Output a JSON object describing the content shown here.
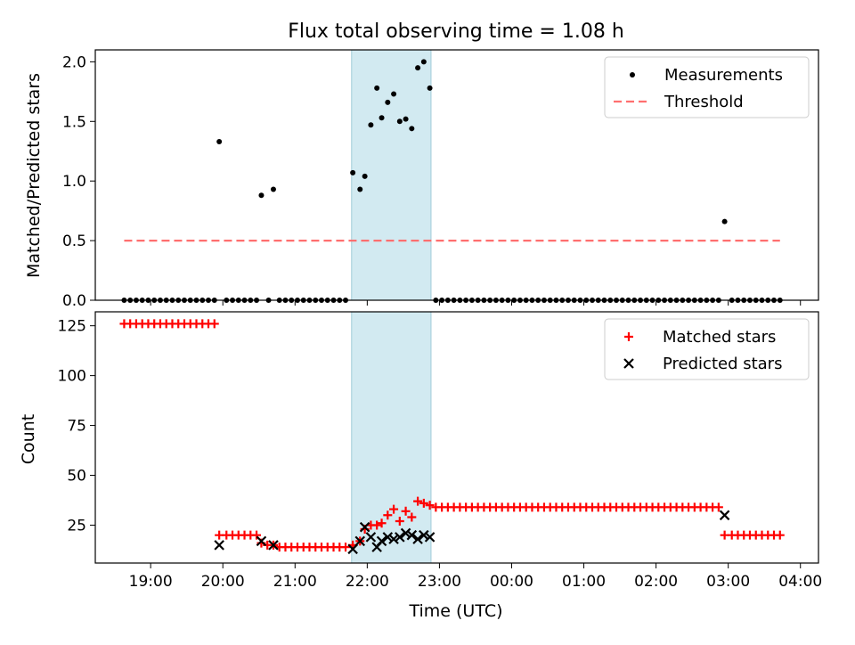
{
  "title": "Flux total observing time = 1.08 h",
  "xlabel": "Time (UTC)",
  "x_ticks": [
    "19:00",
    "20:00",
    "21:00",
    "22:00",
    "23:00",
    "00:00",
    "01:00",
    "02:00",
    "03:00",
    "04:00"
  ],
  "colors": {
    "measurements": "#000000",
    "threshold": "#ff6f6f",
    "matched": "#ff0000",
    "predicted": "#000000",
    "span": "#add8e6"
  },
  "chart_data": [
    {
      "type": "scatter",
      "ylabel": "Matched/Predicted stars",
      "ylim": [
        0,
        2.1
      ],
      "y_ticks": [
        "0.0",
        "0.5",
        "1.0",
        "1.5",
        "2.0"
      ],
      "legend": {
        "placement": "top-right",
        "entries": [
          "Measurements",
          "Threshold"
        ]
      },
      "highlight_span": {
        "start": "21:47",
        "end": "22:53"
      },
      "threshold": {
        "value": 0.5,
        "start": "18:38",
        "end": "03:43"
      },
      "series": [
        {
          "name": "Measurements",
          "points": [
            [
              "18:38",
              0
            ],
            [
              "18:43",
              0
            ],
            [
              "18:48",
              0
            ],
            [
              "18:53",
              0
            ],
            [
              "18:58",
              0
            ],
            [
              "19:03",
              0
            ],
            [
              "19:08",
              0
            ],
            [
              "19:13",
              0
            ],
            [
              "19:18",
              0
            ],
            [
              "19:23",
              0
            ],
            [
              "19:28",
              0
            ],
            [
              "19:33",
              0
            ],
            [
              "19:38",
              0
            ],
            [
              "19:43",
              0
            ],
            [
              "19:48",
              0
            ],
            [
              "19:53",
              0
            ],
            [
              "19:57",
              1.33
            ],
            [
              "20:03",
              0
            ],
            [
              "20:08",
              0
            ],
            [
              "20:13",
              0
            ],
            [
              "20:18",
              0
            ],
            [
              "20:23",
              0
            ],
            [
              "20:28",
              0
            ],
            [
              "20:32",
              0.88
            ],
            [
              "20:42",
              0.93
            ],
            [
              "20:38",
              0
            ],
            [
              "20:47",
              0
            ],
            [
              "20:52",
              0
            ],
            [
              "20:57",
              0
            ],
            [
              "21:02",
              0
            ],
            [
              "21:07",
              0
            ],
            [
              "21:12",
              0
            ],
            [
              "21:17",
              0
            ],
            [
              "21:22",
              0
            ],
            [
              "21:27",
              0
            ],
            [
              "21:32",
              0
            ],
            [
              "21:37",
              0
            ],
            [
              "21:42",
              0
            ],
            [
              "21:48",
              1.07
            ],
            [
              "21:54",
              0.93
            ],
            [
              "21:58",
              1.04
            ],
            [
              "22:03",
              1.47
            ],
            [
              "22:08",
              1.78
            ],
            [
              "22:12",
              1.53
            ],
            [
              "22:17",
              1.66
            ],
            [
              "22:22",
              1.73
            ],
            [
              "22:27",
              1.5
            ],
            [
              "22:32",
              1.52
            ],
            [
              "22:37",
              1.44
            ],
            [
              "22:42",
              1.95
            ],
            [
              "22:47",
              2.0
            ],
            [
              "22:52",
              1.78
            ],
            [
              "22:57",
              0
            ],
            [
              "23:02",
              0
            ],
            [
              "23:07",
              0
            ],
            [
              "23:12",
              0
            ],
            [
              "23:17",
              0
            ],
            [
              "23:22",
              0
            ],
            [
              "23:27",
              0
            ],
            [
              "23:32",
              0
            ],
            [
              "23:37",
              0
            ],
            [
              "23:42",
              0
            ],
            [
              "23:47",
              0
            ],
            [
              "23:52",
              0
            ],
            [
              "23:57",
              0
            ],
            [
              "00:02",
              0
            ],
            [
              "00:07",
              0
            ],
            [
              "00:12",
              0
            ],
            [
              "00:17",
              0
            ],
            [
              "00:22",
              0
            ],
            [
              "00:27",
              0
            ],
            [
              "00:32",
              0
            ],
            [
              "00:37",
              0
            ],
            [
              "00:42",
              0
            ],
            [
              "00:47",
              0
            ],
            [
              "00:52",
              0
            ],
            [
              "00:57",
              0
            ],
            [
              "01:02",
              0
            ],
            [
              "01:07",
              0
            ],
            [
              "01:12",
              0
            ],
            [
              "01:17",
              0
            ],
            [
              "01:22",
              0
            ],
            [
              "01:27",
              0
            ],
            [
              "01:32",
              0
            ],
            [
              "01:37",
              0
            ],
            [
              "01:42",
              0
            ],
            [
              "01:47",
              0
            ],
            [
              "01:52",
              0
            ],
            [
              "01:57",
              0
            ],
            [
              "02:02",
              0
            ],
            [
              "02:07",
              0
            ],
            [
              "02:12",
              0
            ],
            [
              "02:17",
              0
            ],
            [
              "02:22",
              0
            ],
            [
              "02:27",
              0
            ],
            [
              "02:32",
              0
            ],
            [
              "02:37",
              0
            ],
            [
              "02:42",
              0
            ],
            [
              "02:47",
              0
            ],
            [
              "02:52",
              0
            ],
            [
              "02:57",
              0.66
            ],
            [
              "03:03",
              0
            ],
            [
              "03:08",
              0
            ],
            [
              "03:13",
              0
            ],
            [
              "03:18",
              0
            ],
            [
              "03:23",
              0
            ],
            [
              "03:28",
              0
            ],
            [
              "03:33",
              0
            ],
            [
              "03:38",
              0
            ],
            [
              "03:43",
              0
            ]
          ]
        }
      ]
    },
    {
      "type": "scatter",
      "ylabel": "Count",
      "ylim": [
        6,
        132
      ],
      "y_ticks": [
        "25",
        "50",
        "75",
        "100",
        "125"
      ],
      "legend": {
        "placement": "top-right",
        "entries": [
          "Matched stars",
          "Predicted stars"
        ]
      },
      "highlight_span": {
        "start": "21:47",
        "end": "22:53"
      },
      "series": [
        {
          "name": "Matched stars",
          "points": [
            [
              "18:38",
              126
            ],
            [
              "18:43",
              126
            ],
            [
              "18:48",
              126
            ],
            [
              "18:53",
              126
            ],
            [
              "18:58",
              126
            ],
            [
              "19:03",
              126
            ],
            [
              "19:08",
              126
            ],
            [
              "19:13",
              126
            ],
            [
              "19:18",
              126
            ],
            [
              "19:23",
              126
            ],
            [
              "19:28",
              126
            ],
            [
              "19:33",
              126
            ],
            [
              "19:38",
              126
            ],
            [
              "19:43",
              126
            ],
            [
              "19:48",
              126
            ],
            [
              "19:53",
              126
            ],
            [
              "19:57",
              20
            ],
            [
              "20:03",
              20
            ],
            [
              "20:08",
              20
            ],
            [
              "20:13",
              20
            ],
            [
              "20:18",
              20
            ],
            [
              "20:23",
              20
            ],
            [
              "20:28",
              20
            ],
            [
              "20:32",
              16
            ],
            [
              "20:37",
              15
            ],
            [
              "20:42",
              15
            ],
            [
              "20:47",
              14
            ],
            [
              "20:52",
              14
            ],
            [
              "20:57",
              14
            ],
            [
              "21:02",
              14
            ],
            [
              "21:07",
              14
            ],
            [
              "21:12",
              14
            ],
            [
              "21:17",
              14
            ],
            [
              "21:22",
              14
            ],
            [
              "21:27",
              14
            ],
            [
              "21:32",
              14
            ],
            [
              "21:37",
              14
            ],
            [
              "21:42",
              14
            ],
            [
              "21:48",
              15
            ],
            [
              "21:54",
              17
            ],
            [
              "21:58",
              23
            ],
            [
              "22:03",
              25
            ],
            [
              "22:08",
              25
            ],
            [
              "22:12",
              26
            ],
            [
              "22:17",
              30
            ],
            [
              "22:22",
              33
            ],
            [
              "22:27",
              27
            ],
            [
              "22:32",
              32
            ],
            [
              "22:37",
              29
            ],
            [
              "22:42",
              37
            ],
            [
              "22:47",
              36
            ],
            [
              "22:52",
              35
            ],
            [
              "22:57",
              34
            ],
            [
              "23:02",
              34
            ],
            [
              "23:07",
              34
            ],
            [
              "23:12",
              34
            ],
            [
              "23:17",
              34
            ],
            [
              "23:22",
              34
            ],
            [
              "23:27",
              34
            ],
            [
              "23:32",
              34
            ],
            [
              "23:37",
              34
            ],
            [
              "23:42",
              34
            ],
            [
              "23:47",
              34
            ],
            [
              "23:52",
              34
            ],
            [
              "23:57",
              34
            ],
            [
              "00:02",
              34
            ],
            [
              "00:07",
              34
            ],
            [
              "00:12",
              34
            ],
            [
              "00:17",
              34
            ],
            [
              "00:22",
              34
            ],
            [
              "00:27",
              34
            ],
            [
              "00:32",
              34
            ],
            [
              "00:37",
              34
            ],
            [
              "00:42",
              34
            ],
            [
              "00:47",
              34
            ],
            [
              "00:52",
              34
            ],
            [
              "00:57",
              34
            ],
            [
              "01:02",
              34
            ],
            [
              "01:07",
              34
            ],
            [
              "01:12",
              34
            ],
            [
              "01:17",
              34
            ],
            [
              "01:22",
              34
            ],
            [
              "01:27",
              34
            ],
            [
              "01:32",
              34
            ],
            [
              "01:37",
              34
            ],
            [
              "01:42",
              34
            ],
            [
              "01:47",
              34
            ],
            [
              "01:52",
              34
            ],
            [
              "01:57",
              34
            ],
            [
              "02:02",
              34
            ],
            [
              "02:07",
              34
            ],
            [
              "02:12",
              34
            ],
            [
              "02:17",
              34
            ],
            [
              "02:22",
              34
            ],
            [
              "02:27",
              34
            ],
            [
              "02:32",
              34
            ],
            [
              "02:37",
              34
            ],
            [
              "02:42",
              34
            ],
            [
              "02:47",
              34
            ],
            [
              "02:52",
              34
            ],
            [
              "02:57",
              20
            ],
            [
              "03:03",
              20
            ],
            [
              "03:08",
              20
            ],
            [
              "03:13",
              20
            ],
            [
              "03:18",
              20
            ],
            [
              "03:23",
              20
            ],
            [
              "03:28",
              20
            ],
            [
              "03:33",
              20
            ],
            [
              "03:38",
              20
            ],
            [
              "03:43",
              20
            ]
          ]
        },
        {
          "name": "Predicted stars",
          "points": [
            [
              "19:57",
              15
            ],
            [
              "20:32",
              17
            ],
            [
              "20:42",
              15
            ],
            [
              "21:48",
              13
            ],
            [
              "21:54",
              17
            ],
            [
              "21:58",
              24
            ],
            [
              "22:03",
              19
            ],
            [
              "22:08",
              14
            ],
            [
              "22:12",
              17
            ],
            [
              "22:17",
              19
            ],
            [
              "22:22",
              18
            ],
            [
              "22:27",
              19
            ],
            [
              "22:32",
              21
            ],
            [
              "22:37",
              20
            ],
            [
              "22:42",
              18
            ],
            [
              "22:47",
              20
            ],
            [
              "22:52",
              19
            ],
            [
              "02:57",
              30
            ]
          ]
        }
      ]
    }
  ]
}
